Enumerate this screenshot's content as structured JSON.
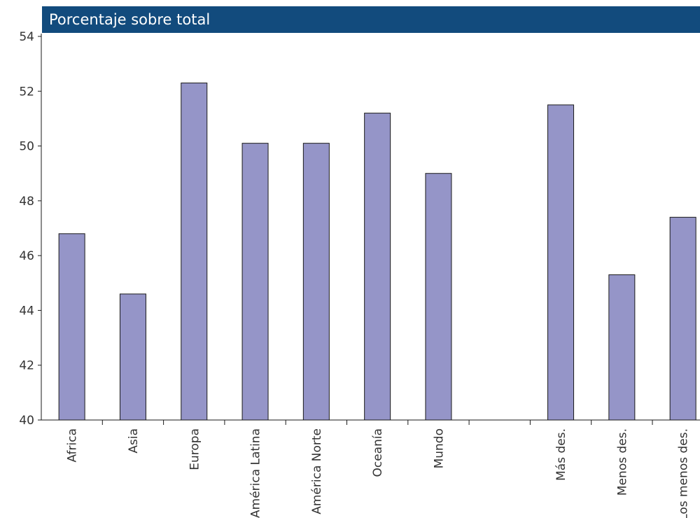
{
  "header": {
    "title": "Porcentaje sobre total"
  },
  "chart_data": {
    "type": "bar",
    "categories": [
      "Africa",
      "Asia",
      "Europa",
      "América Latina",
      "América Norte",
      "Oceanía",
      "Mundo",
      "",
      "Más des.",
      "Menos des.",
      "Los menos des."
    ],
    "values": [
      46.8,
      44.6,
      52.3,
      50.1,
      50.1,
      51.2,
      49.0,
      null,
      51.5,
      45.3,
      47.4
    ],
    "title": "Porcentaje sobre total",
    "xlabel": "",
    "ylabel": "",
    "ylim": [
      40,
      54
    ],
    "yticks": [
      40,
      42,
      44,
      46,
      48,
      50,
      52,
      54
    ],
    "grid": false,
    "bar_color": "#9595c8",
    "bar_edge_color": "#1a1a1a",
    "header_color": "#124b7d"
  }
}
